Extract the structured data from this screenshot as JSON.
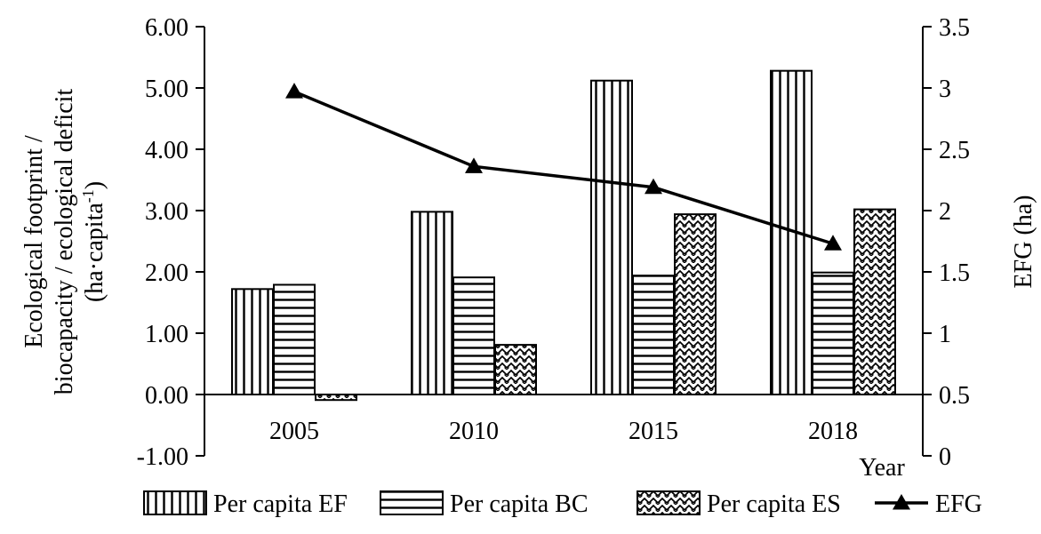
{
  "chart_data": {
    "type": "bar",
    "categories": [
      "2005",
      "2010",
      "2015",
      "2018"
    ],
    "series": [
      {
        "name": "Per capita EF",
        "type": "bar",
        "pattern": "vertical-lines",
        "values": [
          1.72,
          2.98,
          5.12,
          5.28
        ]
      },
      {
        "name": "Per capita BC",
        "type": "bar",
        "pattern": "horizontal-lines",
        "values": [
          1.79,
          1.91,
          1.94,
          1.99
        ]
      },
      {
        "name": "Per capita ES",
        "type": "bar",
        "pattern": "zigzag",
        "values": [
          -0.09,
          0.81,
          2.94,
          3.02
        ]
      },
      {
        "name": "EFG",
        "type": "line",
        "marker": "triangle",
        "axis": "right",
        "values": [
          2.97,
          2.36,
          2.19,
          1.73
        ]
      }
    ],
    "xlabel": "Year",
    "ylabel_lines": [
      "Ecological footprint /",
      "biocapacity / ecological deficit",
      "(ha·capita",
      "-1",
      ")"
    ],
    "ylabel_right": "EFG (ha)",
    "ylim": [
      -1.0,
      6.0
    ],
    "ylim_right": [
      0,
      3.5
    ],
    "yticks": [
      "-1.00",
      "0.00",
      "1.00",
      "2.00",
      "3.00",
      "4.00",
      "5.00",
      "6.00"
    ],
    "yticks_right": [
      "0",
      "0.5",
      "1",
      "1.5",
      "2",
      "2.5",
      "3",
      "3.5"
    ],
    "grid": false,
    "legend_position": "bottom",
    "colors": {
      "bar_stroke": "#000000",
      "bar_fill": "#ffffff",
      "line": "#000000"
    }
  }
}
